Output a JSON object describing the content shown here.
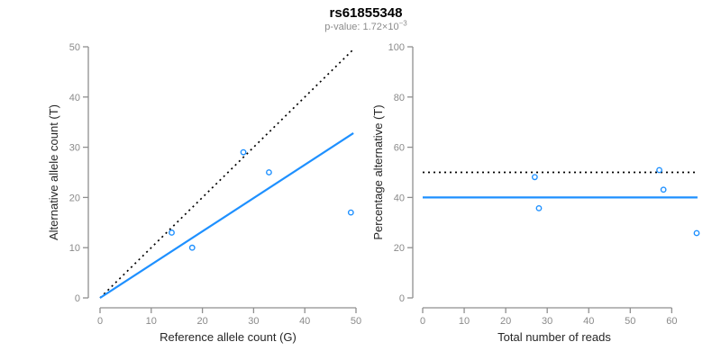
{
  "header": {
    "title": "rs61855348",
    "subtitle_main": "p-value: 1.72×10",
    "subtitle_exponent": "−3"
  },
  "colors": {
    "point_blue": "#1E90FF",
    "fit_line_blue": "#1E90FF",
    "reference_line_black": "#000000",
    "axis_gray": "#8f8f8f",
    "tick_label_gray": "#8a8a8a",
    "axis_title_dark": "#262626"
  },
  "chart_data": [
    {
      "name": "allele-counts-scatter",
      "type": "scatter",
      "xlabel": "Reference allele count (G)",
      "ylabel": "Alternative allele count (T)",
      "xlim": [
        0,
        50
      ],
      "ylim": [
        0,
        50
      ],
      "xticks": [
        0,
        10,
        20,
        30,
        40,
        50
      ],
      "yticks": [
        0,
        10,
        20,
        30,
        40,
        50
      ],
      "grid": false,
      "legend": null,
      "points": [
        {
          "x": 14,
          "y": 13
        },
        {
          "x": 18,
          "y": 10
        },
        {
          "x": 28,
          "y": 29
        },
        {
          "x": 33,
          "y": 25
        },
        {
          "x": 49,
          "y": 17
        }
      ],
      "point_style": "open-circle",
      "lines": [
        {
          "name": "identity-line",
          "style": "dotted",
          "color": "#000000",
          "x": [
            0,
            49.5
          ],
          "y": [
            0,
            49.5
          ]
        },
        {
          "name": "fit-line",
          "style": "solid",
          "color": "#1E90FF",
          "x": [
            0,
            49.5
          ],
          "y": [
            0,
            32.8
          ]
        }
      ]
    },
    {
      "name": "percentage-alternative-scatter",
      "type": "scatter",
      "xlabel": "Total number of reads",
      "ylabel": "Percentage alternative (T)",
      "xlim": [
        0,
        66
      ],
      "ylim": [
        0,
        100
      ],
      "xticks": [
        0,
        10,
        20,
        30,
        40,
        50,
        60
      ],
      "yticks": [
        0,
        20,
        40,
        60,
        80,
        100
      ],
      "grid": false,
      "legend": null,
      "points": [
        {
          "x": 27,
          "y": 48.1
        },
        {
          "x": 28,
          "y": 35.7
        },
        {
          "x": 57,
          "y": 50.9
        },
        {
          "x": 58,
          "y": 43.1
        },
        {
          "x": 66,
          "y": 25.8
        }
      ],
      "point_style": "open-circle",
      "lines": [
        {
          "name": "fifty-percent-line",
          "style": "dotted",
          "color": "#000000",
          "x": [
            0,
            66.2
          ],
          "y": [
            50,
            50
          ]
        },
        {
          "name": "mean-percentage-line",
          "style": "solid",
          "color": "#1E90FF",
          "x": [
            0,
            66.2
          ],
          "y": [
            40,
            40
          ]
        }
      ]
    }
  ]
}
